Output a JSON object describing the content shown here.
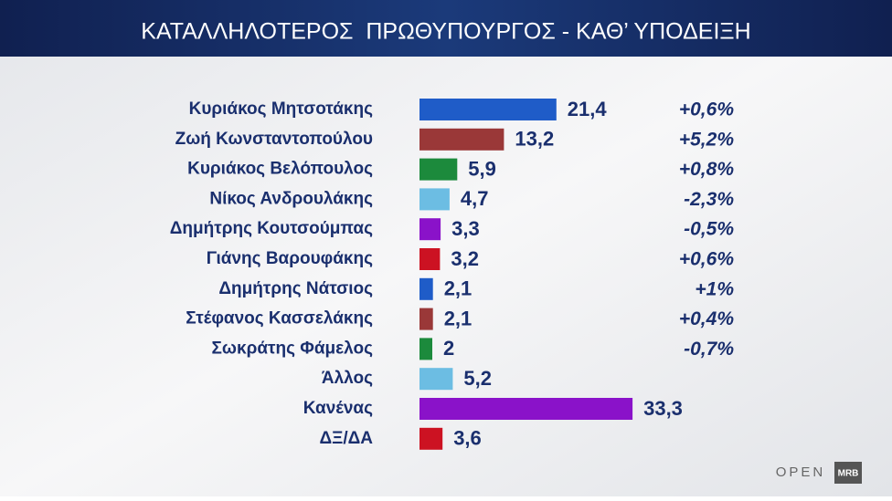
{
  "chart_data": {
    "type": "hbar",
    "title": "ΚΑΤΑΛΛΗΛΟΤΕΡΟΣ  ΠΡΩΘΥΠΟΥΡΓΟΣ - ΚΑΘ’ ΥΠΟΔΕΙΞΗ",
    "categories": [
      "Κυριάκος Μητσοτάκης",
      "Ζωή Κωνσταντοπούλου",
      "Κυριάκος Βελόπουλος",
      "Νίκος Ανδρουλάκης",
      "Δημήτρης Κουτσούμπας",
      "Γιάνης Βαρουφάκης",
      "Δημήτρης Νάτσιος",
      "Στέφανος Κασσελάκης",
      "Σωκράτης Φάμελος",
      "Άλλος",
      "Κανένας",
      "ΔΞ/ΔΑ"
    ],
    "values": [
      21.4,
      13.2,
      5.9,
      4.7,
      3.3,
      3.2,
      2.1,
      2.1,
      2,
      5.2,
      33.3,
      3.6
    ],
    "value_labels": [
      "21,4",
      "13,2",
      "5,9",
      "4,7",
      "3,3",
      "3,2",
      "2,1",
      "2,1",
      "2",
      "5,2",
      "33,3",
      "3,6"
    ],
    "changes": [
      "+0,6%",
      "+5,2%",
      "+0,8%",
      "-2,3%",
      "-0,5%",
      "+0,6%",
      "+1%",
      "+0,4%",
      "-0,7%",
      null,
      null,
      null
    ],
    "colors": [
      "#1f5cc8",
      "#9a3838",
      "#1c8a3c",
      "#6cbde3",
      "#8a12c9",
      "#cc1222",
      "#1f5cc8",
      "#9a3838",
      "#1c8a3c",
      "#6cbde3",
      "#8a12c9",
      "#cc1222"
    ],
    "broadcaster": "OPEN",
    "pollster": "MRB"
  }
}
